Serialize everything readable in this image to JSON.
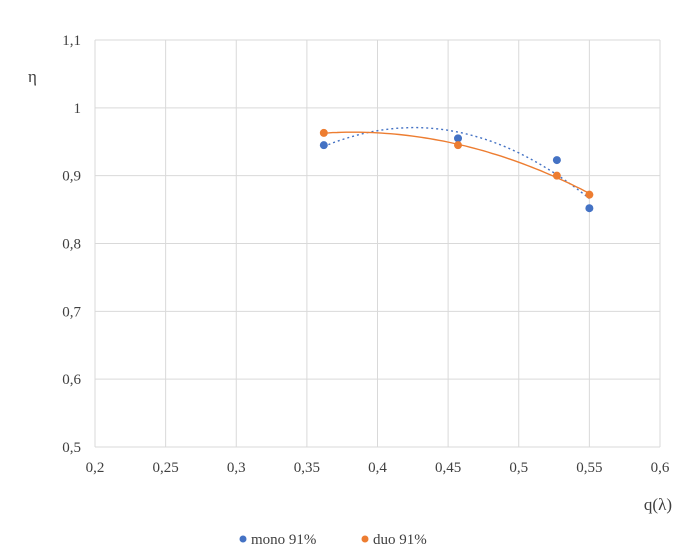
{
  "chart_data": {
    "type": "scatter",
    "title": "",
    "xlabel": "q(λ)",
    "ylabel": "η",
    "xlim": [
      0.2,
      0.6
    ],
    "ylim": [
      0.5,
      1.1
    ],
    "grid": true,
    "legend_position": "bottom",
    "x_ticks": [
      "0,2",
      "0,25",
      "0,3",
      "0,35",
      "0,4",
      "0,45",
      "0,5",
      "0,55",
      "0,6"
    ],
    "y_ticks": [
      "0,5",
      "0,6",
      "0,7",
      "0,8",
      "0,9",
      "1",
      "1,1"
    ],
    "series": [
      {
        "name": "mono 91%",
        "color": "#4472c4",
        "trendline": "polynomial (dotted)",
        "points": [
          {
            "x": 0.362,
            "y": 0.945
          },
          {
            "x": 0.457,
            "y": 0.955
          },
          {
            "x": 0.527,
            "y": 0.923
          },
          {
            "x": 0.55,
            "y": 0.852
          }
        ]
      },
      {
        "name": "duo 91%",
        "color": "#ed7d31",
        "trendline": "polynomial (solid)",
        "points": [
          {
            "x": 0.362,
            "y": 0.963
          },
          {
            "x": 0.457,
            "y": 0.945
          },
          {
            "x": 0.527,
            "y": 0.9
          },
          {
            "x": 0.55,
            "y": 0.872
          }
        ]
      }
    ]
  }
}
